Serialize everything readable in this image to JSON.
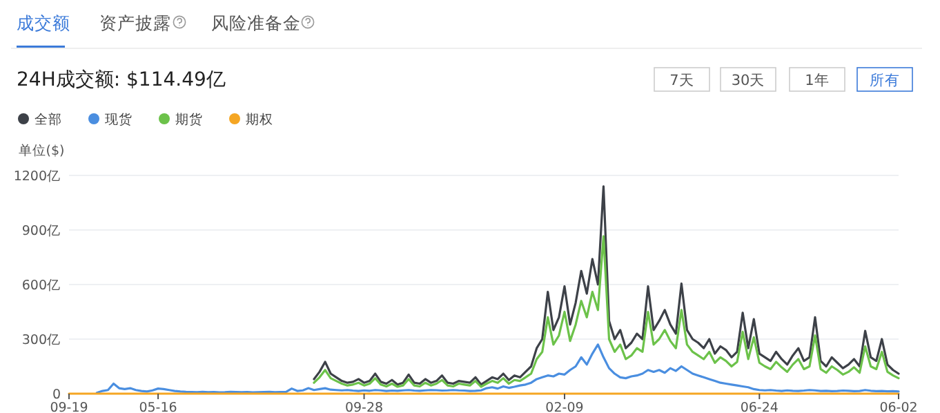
{
  "chart_data": {
    "type": "line",
    "title": "24H成交额: $114.49亿",
    "ylabel": "单位($)",
    "annotations": [
      "成交额",
      "资产披露",
      "风险准备金",
      "7天",
      "30天",
      "1年",
      "所有"
    ],
    "categories": [
      "09-19",
      null,
      null,
      null,
      null,
      null,
      null,
      null,
      null,
      null,
      null,
      null,
      null,
      null,
      null,
      null,
      "05-16",
      null,
      null,
      null,
      null,
      null,
      null,
      null,
      null,
      null,
      null,
      null,
      null,
      null,
      null,
      null,
      null,
      null,
      null,
      null,
      null,
      null,
      null,
      null,
      null,
      null,
      null,
      null,
      null,
      null,
      null,
      null,
      null,
      null,
      null,
      null,
      null,
      "09-28",
      null,
      null,
      null,
      null,
      null,
      null,
      null,
      null,
      null,
      null,
      null,
      null,
      null,
      null,
      null,
      null,
      null,
      null,
      null,
      null,
      null,
      null,
      null,
      null,
      null,
      null,
      null,
      null,
      null,
      null,
      null,
      null,
      null,
      null,
      null,
      "02-09",
      null,
      null,
      null,
      null,
      null,
      null,
      null,
      null,
      null,
      null,
      null,
      null,
      null,
      null,
      null,
      null,
      null,
      null,
      null,
      null,
      null,
      null,
      null,
      null,
      null,
      null,
      null,
      null,
      null,
      null,
      null,
      null,
      null,
      null,
      "06-24",
      null,
      null,
      null,
      null,
      null,
      null,
      null,
      null,
      null,
      null,
      null,
      null,
      null,
      null,
      null,
      null,
      null,
      null,
      null,
      null,
      null,
      null,
      null,
      null,
      "06-02"
    ],
    "ylim": [
      0,
      1200
    ],
    "yticks": [
      0,
      {
        "value": 300,
        "label": "300亿"
      },
      {
        "value": 600,
        "label": "600亿"
      },
      {
        "value": 900,
        "label": "900亿"
      },
      {
        "value": 1200,
        "label": "1200亿"
      }
    ],
    "grid": "y",
    "legend": "top left",
    "marker": "none",
    "line_style": "solid",
    "series": [
      {
        "name": "全部",
        "color": "#3d4148",
        "values": [
          null,
          null,
          null,
          null,
          null,
          null,
          null,
          null,
          null,
          null,
          null,
          null,
          null,
          null,
          null,
          null,
          null,
          null,
          null,
          null,
          null,
          null,
          null,
          null,
          null,
          null,
          null,
          null,
          null,
          null,
          null,
          null,
          null,
          null,
          null,
          null,
          null,
          null,
          null,
          null,
          null,
          null,
          null,
          null,
          80,
          120,
          175,
          110,
          90,
          70,
          60,
          65,
          80,
          60,
          70,
          110,
          65,
          55,
          75,
          50,
          60,
          105,
          60,
          55,
          80,
          60,
          70,
          100,
          60,
          55,
          70,
          65,
          60,
          90,
          50,
          70,
          90,
          80,
          110,
          75,
          100,
          90,
          120,
          150,
          250,
          300,
          560,
          350,
          420,
          590,
          380,
          500,
          675,
          550,
          740,
          600,
          1140,
          400,
          300,
          350,
          250,
          280,
          330,
          300,
          590,
          350,
          400,
          460,
          380,
          330,
          605,
          350,
          300,
          280,
          250,
          300,
          220,
          260,
          240,
          200,
          230,
          445,
          250,
          410,
          220,
          200,
          180,
          230,
          190,
          160,
          210,
          250,
          180,
          200,
          420,
          180,
          150,
          200,
          170,
          140,
          160,
          190,
          150,
          345,
          200,
          180,
          300,
          160,
          130,
          110
        ]
      },
      {
        "name": "现货",
        "color": "#4a8ee0",
        "values": [
          null,
          null,
          null,
          null,
          null,
          5,
          15,
          20,
          55,
          30,
          25,
          30,
          20,
          15,
          12,
          18,
          28,
          25,
          20,
          15,
          12,
          10,
          9,
          8,
          10,
          8,
          9,
          7,
          8,
          10,
          9,
          8,
          9,
          7,
          8,
          9,
          10,
          8,
          9,
          10,
          28,
          15,
          18,
          30,
          20,
          25,
          30,
          22,
          20,
          18,
          20,
          17,
          15,
          18,
          16,
          20,
          18,
          15,
          17,
          16,
          18,
          20,
          17,
          16,
          18,
          20,
          19,
          17,
          18,
          20,
          18,
          17,
          15,
          16,
          18,
          30,
          35,
          28,
          40,
          32,
          38,
          45,
          50,
          60,
          80,
          90,
          100,
          95,
          110,
          105,
          130,
          150,
          200,
          160,
          220,
          270,
          200,
          140,
          110,
          90,
          85,
          95,
          100,
          110,
          130,
          120,
          130,
          115,
          140,
          125,
          150,
          130,
          110,
          100,
          90,
          80,
          70,
          60,
          55,
          50,
          45,
          40,
          35,
          25,
          20,
          18,
          20,
          17,
          15,
          18,
          16,
          15,
          17,
          20,
          18,
          15,
          16,
          14,
          15,
          17,
          16,
          14,
          15,
          20,
          16,
          14,
          15,
          13,
          14,
          12
        ]
      },
      {
        "name": "期货",
        "color": "#6cc24a",
        "values": [
          null,
          null,
          null,
          null,
          null,
          null,
          null,
          null,
          null,
          null,
          null,
          null,
          null,
          null,
          null,
          null,
          null,
          null,
          null,
          null,
          null,
          null,
          null,
          null,
          null,
          null,
          null,
          null,
          null,
          null,
          null,
          null,
          null,
          null,
          null,
          null,
          null,
          null,
          null,
          null,
          null,
          null,
          null,
          null,
          60,
          90,
          130,
          85,
          70,
          55,
          45,
          50,
          60,
          45,
          55,
          85,
          50,
          40,
          55,
          38,
          45,
          80,
          45,
          40,
          60,
          45,
          55,
          75,
          45,
          40,
          55,
          50,
          45,
          70,
          38,
          55,
          70,
          60,
          85,
          55,
          75,
          70,
          90,
          110,
          190,
          230,
          420,
          270,
          320,
          450,
          290,
          380,
          510,
          420,
          560,
          460,
          865,
          300,
          230,
          270,
          190,
          210,
          250,
          230,
          450,
          270,
          300,
          350,
          290,
          250,
          460,
          270,
          230,
          210,
          190,
          230,
          170,
          200,
          180,
          150,
          175,
          340,
          190,
          310,
          170,
          150,
          135,
          175,
          145,
          120,
          160,
          190,
          135,
          150,
          320,
          135,
          115,
          150,
          130,
          105,
          120,
          145,
          115,
          260,
          150,
          135,
          230,
          120,
          100,
          85
        ]
      },
      {
        "name": "期权",
        "color": "#f5a623",
        "values": [
          0,
          0,
          0,
          0,
          0,
          0,
          0,
          0,
          0,
          0,
          0,
          0,
          0,
          0,
          0,
          0,
          0,
          0,
          0,
          0,
          0,
          0,
          0,
          0,
          0,
          0,
          0,
          0,
          0,
          0,
          0,
          0,
          0,
          0,
          0,
          0,
          0,
          0,
          0,
          0,
          0,
          0,
          0,
          0,
          0,
          0,
          0,
          0,
          0,
          0,
          0,
          0,
          0,
          0,
          0,
          0,
          0,
          0,
          0,
          0,
          0,
          0,
          0,
          0,
          0,
          0,
          0,
          0,
          0,
          0,
          0,
          0,
          0,
          0,
          0,
          0,
          0,
          0,
          0,
          0,
          0,
          0,
          0,
          0,
          0,
          0,
          0,
          0,
          0,
          0,
          0,
          0,
          0,
          0,
          0,
          0,
          0,
          0,
          0,
          0,
          0,
          0,
          0,
          0,
          0,
          0,
          0,
          0,
          0,
          0,
          0,
          0,
          0,
          0,
          0,
          0,
          0,
          0,
          0,
          0,
          0,
          0,
          0,
          0,
          0,
          0,
          0,
          0,
          0,
          0,
          0,
          0,
          0,
          0,
          0,
          0,
          0,
          0,
          0,
          0,
          0,
          0,
          0,
          0,
          0,
          0,
          0,
          0,
          0,
          0
        ]
      }
    ]
  }
}
